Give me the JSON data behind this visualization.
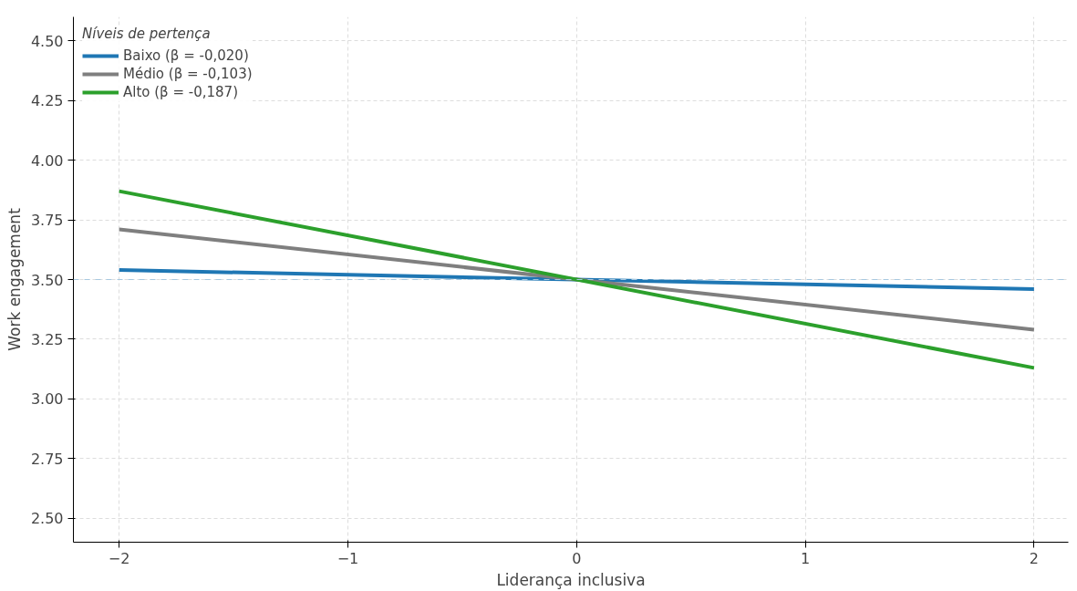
{
  "chart_data": {
    "type": "line",
    "xlabel": "Liderança inclusiva",
    "ylabel": "Work engagement",
    "legend_title": "Níveis de pertença",
    "x": [
      -2,
      2
    ],
    "series": [
      {
        "name": "Baixo (β = -0,020)",
        "color": "#1f77b4",
        "values": [
          3.54,
          3.46
        ]
      },
      {
        "name": "Médio (β = -0,103)",
        "color": "#7f7f7f",
        "values": [
          3.71,
          3.29
        ]
      },
      {
        "name": "Alto (β = -0,187)",
        "color": "#2ca02c",
        "values": [
          3.87,
          3.13
        ]
      }
    ],
    "xlim": [
      -2.2,
      2.15
    ],
    "ylim": [
      2.4,
      4.6
    ],
    "xticks": [
      {
        "value": -2,
        "label": "−2"
      },
      {
        "value": -1,
        "label": "−1"
      },
      0,
      1,
      2
    ],
    "yticks": [
      {
        "value": 2.5,
        "label": "2.50"
      },
      {
        "value": 2.75,
        "label": "2.75"
      },
      {
        "value": 3.0,
        "label": "3.00"
      },
      {
        "value": 3.25,
        "label": "3.25"
      },
      {
        "value": 3.5,
        "label": "3.50"
      },
      {
        "value": 3.75,
        "label": "3.75"
      },
      {
        "value": 4.0,
        "label": "4.00"
      },
      {
        "value": 4.25,
        "label": "4.25"
      },
      {
        "value": 4.5,
        "label": "4.50"
      }
    ],
    "ref_lines": [
      {
        "axis": "y",
        "value": 3.5,
        "color": "#a6c8e0",
        "line_style": "dashed"
      }
    ],
    "grid": true,
    "legend": "top left",
    "line_style": "solid",
    "marker": "none"
  }
}
